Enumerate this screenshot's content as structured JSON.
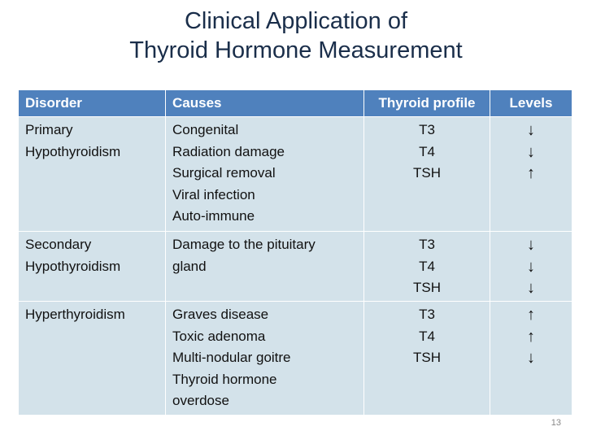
{
  "title": [
    "Clinical Application of",
    "Thyroid Hormone Measurement"
  ],
  "table": {
    "header": [
      "Disorder",
      "Causes",
      "Thyroid profile",
      "Levels"
    ],
    "rows": [
      [
        [
          "Primary",
          "Hypothyroidism"
        ],
        [
          "Congenital",
          "Radiation damage",
          "Surgical removal",
          "Viral infection",
          "Auto-immune"
        ],
        [
          "T3",
          "T4",
          "TSH"
        ],
        [
          "↓",
          "↓",
          "↑"
        ]
      ],
      [
        [
          "Secondary",
          "Hypothyroidism"
        ],
        [
          "Damage to the pituitary",
          "gland"
        ],
        [
          "T3",
          "T4",
          "TSH"
        ],
        [
          "↓",
          "↓",
          "↓"
        ]
      ],
      [
        [
          "Hyperthyroidism"
        ],
        [
          "Graves disease",
          "Toxic adenoma",
          "Multi-nodular goitre",
          "Thyroid hormone",
          "overdose"
        ],
        [
          "T3",
          "T4",
          "TSH"
        ],
        [
          "↑",
          "↑",
          "↓"
        ]
      ]
    ]
  },
  "page_number": "13"
}
